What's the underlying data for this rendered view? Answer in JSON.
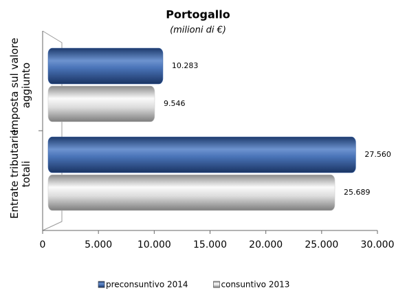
{
  "chart_data": {
    "type": "bar",
    "orientation": "horizontal",
    "title": "Portogallo",
    "subtitle": "(milioni di €)",
    "categories": [
      "Imposta sul valore aggiunto",
      "Entrate tributarie totali"
    ],
    "series": [
      {
        "name": "preconsuntivo 2014",
        "color": "#3a64a8",
        "values": [
          10283,
          27560
        ],
        "value_labels": [
          "10.283",
          "27.560"
        ]
      },
      {
        "name": "consuntivo 2013",
        "color": "#d0d0d0",
        "values": [
          9546,
          25689
        ],
        "value_labels": [
          "9.546",
          "25.689"
        ]
      }
    ],
    "xlim": [
      0,
      30000
    ],
    "xticks": [
      0,
      {
        "value": 5000,
        "label": "5.000"
      },
      {
        "value": 10000,
        "label": "10.000"
      },
      {
        "value": 15000,
        "label": "15.000"
      },
      {
        "value": 20000,
        "label": "20.000"
      },
      {
        "value": 25000,
        "label": "25.000"
      },
      {
        "value": 30000,
        "label": "30.000"
      }
    ],
    "legend": "bottom"
  }
}
